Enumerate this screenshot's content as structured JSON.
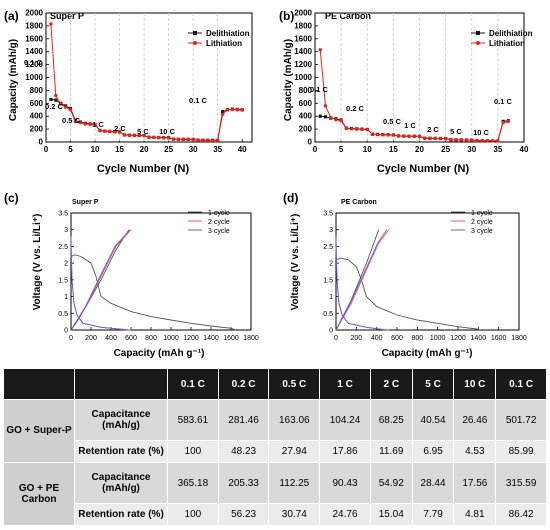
{
  "panels": [
    {
      "letter": "(a)",
      "title": "Super P"
    },
    {
      "letter": "(b)",
      "title": "PE Carbon"
    },
    {
      "letter": "(c)",
      "title": "Super P"
    },
    {
      "letter": "(d)",
      "title": "PE Carbon"
    }
  ],
  "rate_legend": [
    "Delithiation",
    "Lithiation"
  ],
  "cycle_legend": [
    "1 cycle",
    "2 cycle",
    "3 cycle"
  ],
  "rate_labels_a": [
    "0.1 C",
    "0.2 C",
    "0.5 C",
    "1 C",
    "2 C",
    "5 C",
    "10 C",
    "0.1 C"
  ],
  "rate_labels_b": [
    "0.1 C",
    "0.2 C",
    "0.5 C",
    "1 C",
    "2 C",
    "5 C",
    "10 C",
    "0.1 C"
  ],
  "colors": {
    "delith": "#1a1a1a",
    "lith": "#e8221b",
    "c1": "#555555",
    "c2": "#e4567b",
    "c3": "#6a5acd"
  },
  "chart_data": [
    {
      "type": "line",
      "title": "Super P",
      "xlabel": "Cycle Number (N)",
      "ylabel": "Capacity (mAh/g)",
      "xlim": [
        0,
        42
      ],
      "ylim": [
        0,
        2000
      ],
      "xticks": [
        0,
        5,
        10,
        15,
        20,
        25,
        30,
        35,
        40
      ],
      "yticks": [
        0,
        200,
        400,
        600,
        800,
        1000,
        1200,
        1400,
        1600,
        1800,
        2000
      ],
      "rate_boundaries": [
        5,
        10,
        15,
        20,
        25,
        30,
        35
      ],
      "series": [
        {
          "name": "Delithiation",
          "x": [
            1,
            2,
            3,
            4,
            5,
            6,
            7,
            8,
            9,
            10,
            11,
            12,
            13,
            14,
            15,
            16,
            17,
            18,
            19,
            20,
            21,
            22,
            23,
            24,
            25,
            26,
            27,
            28,
            29,
            30,
            31,
            32,
            33,
            34,
            35,
            36,
            37,
            38,
            39,
            40
          ],
          "y": [
            660,
            650,
            600,
            560,
            520,
            330,
            310,
            290,
            280,
            275,
            180,
            170,
            165,
            160,
            158,
            110,
            106,
            104,
            102,
            100,
            75,
            72,
            70,
            68,
            67,
            45,
            43,
            42,
            41,
            40,
            30,
            28,
            27,
            26,
            26,
            470,
            500,
            510,
            505,
            500
          ]
        },
        {
          "name": "Lithiation",
          "x": [
            1,
            2,
            3,
            4,
            5,
            6,
            7,
            8,
            9,
            10,
            11,
            12,
            13,
            14,
            15,
            16,
            17,
            18,
            19,
            20,
            21,
            22,
            23,
            24,
            25,
            26,
            27,
            28,
            29,
            30,
            31,
            32,
            33,
            34,
            35,
            36,
            37,
            38,
            39,
            40
          ],
          "y": [
            1830,
            720,
            590,
            540,
            500,
            320,
            300,
            280,
            272,
            268,
            175,
            168,
            162,
            158,
            155,
            108,
            104,
            102,
            100,
            98,
            73,
            70,
            68,
            66,
            65,
            44,
            42,
            41,
            40,
            39,
            29,
            27,
            26,
            25,
            25,
            430,
            500,
            505,
            500,
            495
          ]
        }
      ]
    },
    {
      "type": "line",
      "title": "PE Carbon",
      "xlabel": "Cycle Number (N)",
      "ylabel": "Capacity (mAh/g)",
      "xlim": [
        0,
        40
      ],
      "ylim": [
        0,
        2000
      ],
      "xticks": [
        0,
        5,
        10,
        15,
        20,
        25,
        30,
        35,
        40
      ],
      "yticks": [
        0,
        200,
        400,
        600,
        800,
        1000,
        1200,
        1400,
        1600,
        1800,
        2000
      ],
      "rate_boundaries": [
        5,
        10,
        15,
        20,
        25,
        30,
        35
      ],
      "series": [
        {
          "name": "Delithiation",
          "x": [
            1,
            2,
            3,
            4,
            5,
            6,
            7,
            8,
            9,
            10,
            11,
            12,
            13,
            14,
            15,
            16,
            17,
            18,
            19,
            20,
            21,
            22,
            23,
            24,
            25,
            26,
            27,
            28,
            29,
            30,
            31,
            32,
            33,
            34,
            35,
            36,
            37
          ],
          "y": [
            400,
            390,
            370,
            360,
            340,
            215,
            210,
            205,
            200,
            195,
            120,
            118,
            115,
            112,
            110,
            95,
            92,
            90,
            90,
            88,
            60,
            58,
            56,
            55,
            54,
            35,
            33,
            32,
            31,
            30,
            20,
            19,
            18,
            18,
            17,
            320,
            330
          ]
        },
        {
          "name": "Lithiation",
          "x": [
            1,
            2,
            3,
            4,
            5,
            6,
            7,
            8,
            9,
            10,
            11,
            12,
            13,
            14,
            15,
            16,
            17,
            18,
            19,
            20,
            21,
            22,
            23,
            24,
            25,
            26,
            27,
            28,
            29,
            30,
            31,
            32,
            33,
            34,
            35,
            36,
            37
          ],
          "y": [
            1430,
            560,
            380,
            345,
            330,
            210,
            205,
            200,
            195,
            192,
            118,
            115,
            112,
            110,
            108,
            93,
            90,
            89,
            88,
            87,
            58,
            56,
            55,
            54,
            53,
            34,
            32,
            31,
            30,
            29,
            19,
            18,
            18,
            17,
            17,
            300,
            320
          ]
        }
      ]
    },
    {
      "type": "line",
      "title": "Super P",
      "xlabel": "Capacity (mAh g⁻¹)",
      "ylabel": "Voltage (V vs. Li/Li⁺)",
      "xlim": [
        0,
        1800
      ],
      "ylim": [
        0,
        3.5
      ],
      "xticks": [
        0,
        200,
        400,
        600,
        800,
        1000,
        1200,
        1400,
        1600,
        1800
      ],
      "yticks": [
        0,
        0.5,
        1.0,
        1.5,
        2.0,
        2.5,
        3.0,
        3.5
      ],
      "series": [
        {
          "name": "1 cycle",
          "x": [
            0,
            40,
            100,
            200,
            250,
            300,
            400,
            600,
            800,
            1000,
            1200,
            1400,
            1600,
            1650
          ],
          "y": [
            2.2,
            2.25,
            2.2,
            2.0,
            1.6,
            1.0,
            0.8,
            0.55,
            0.4,
            0.3,
            0.2,
            0.12,
            0.05,
            0.0
          ]
        },
        {
          "name": "1 cycle",
          "x": [
            0,
            50,
            150,
            300,
            450,
            580
          ],
          "y": [
            0.0,
            0.2,
            0.7,
            1.5,
            2.4,
            3.0
          ]
        },
        {
          "name": "2 cycle",
          "x": [
            0,
            150,
            300,
            450,
            600
          ],
          "y": [
            0.0,
            0.7,
            1.6,
            2.5,
            3.0
          ]
        },
        {
          "name": "2 cycle",
          "x": [
            0,
            10,
            30,
            60,
            120,
            300,
            600
          ],
          "y": [
            2.5,
            1.5,
            0.8,
            0.45,
            0.2,
            0.08,
            0.0
          ]
        },
        {
          "name": "3 cycle",
          "x": [
            0,
            145,
            290,
            440,
            590
          ],
          "y": [
            0.0,
            0.7,
            1.6,
            2.5,
            3.0
          ]
        },
        {
          "name": "3 cycle",
          "x": [
            0,
            10,
            30,
            60,
            120,
            300,
            560
          ],
          "y": [
            2.8,
            1.5,
            0.8,
            0.45,
            0.2,
            0.08,
            0.0
          ]
        }
      ]
    },
    {
      "type": "line",
      "title": "PE Carbon",
      "xlabel": "Capacity (mAh g⁻¹)",
      "ylabel": "Voltage (V vs. Li/Li⁺)",
      "xlim": [
        0,
        1800
      ],
      "ylim": [
        0,
        3.5
      ],
      "xticks": [
        0,
        200,
        400,
        600,
        800,
        1000,
        1200,
        1400,
        1600,
        1800
      ],
      "yticks": [
        0,
        0.5,
        1.0,
        1.5,
        2.0,
        2.5,
        3.0,
        3.5
      ],
      "series": [
        {
          "name": "1 cycle",
          "x": [
            0,
            50,
            120,
            200,
            250,
            300,
            400,
            600,
            800,
            1000,
            1200,
            1380,
            1420
          ],
          "y": [
            2.1,
            2.15,
            2.1,
            1.9,
            1.5,
            1.0,
            0.7,
            0.45,
            0.3,
            0.2,
            0.1,
            0.03,
            0.0
          ]
        },
        {
          "name": "1 cycle",
          "x": [
            0,
            50,
            150,
            300,
            420
          ],
          "y": [
            0.0,
            0.3,
            0.9,
            2.0,
            3.0
          ]
        },
        {
          "name": "2 cycle",
          "x": [
            0,
            150,
            300,
            420,
            520
          ],
          "y": [
            0.0,
            0.8,
            1.8,
            2.6,
            3.0
          ]
        },
        {
          "name": "2 cycle",
          "x": [
            0,
            10,
            30,
            60,
            120,
            300,
            520
          ],
          "y": [
            2.5,
            1.5,
            0.8,
            0.45,
            0.2,
            0.08,
            0.0
          ]
        },
        {
          "name": "3 cycle",
          "x": [
            0,
            140,
            290,
            410,
            500
          ],
          "y": [
            0.0,
            0.8,
            1.8,
            2.6,
            3.0
          ]
        },
        {
          "name": "3 cycle",
          "x": [
            0,
            10,
            30,
            60,
            120,
            300,
            480
          ],
          "y": [
            2.8,
            1.5,
            0.8,
            0.45,
            0.2,
            0.08,
            0.0
          ]
        }
      ]
    },
    {
      "type": "table",
      "columns": [
        "0.1 C",
        "0.2 C",
        "0.5 C",
        "1 C",
        "2 C",
        "5 C",
        "10 C",
        "0.1 C"
      ],
      "groups": [
        {
          "name": "GO + Super-P",
          "rows": [
            {
              "label": "Capacitance (mAh/g)",
              "values": [
                "583.61",
                "281.46",
                "163.06",
                "104.24",
                "68.25",
                "40.54",
                "26.46",
                "501.72"
              ]
            },
            {
              "label": "Retention rate (%)",
              "values": [
                "100",
                "48.23",
                "27.94",
                "17.86",
                "11.69",
                "6.95",
                "4.53",
                "85.99"
              ]
            }
          ]
        },
        {
          "name": "GO + PE Carbon",
          "rows": [
            {
              "label": "Capacitance (mAh/g)",
              "values": [
                "365.18",
                "205.33",
                "112.25",
                "90.43",
                "54.92",
                "28.44",
                "17.56",
                "315.59"
              ]
            },
            {
              "label": "Retention rate (%)",
              "values": [
                "100",
                "56.23",
                "30.74",
                "24.76",
                "15.04",
                "7.79",
                "4.81",
                "86.42"
              ]
            }
          ]
        }
      ]
    }
  ]
}
